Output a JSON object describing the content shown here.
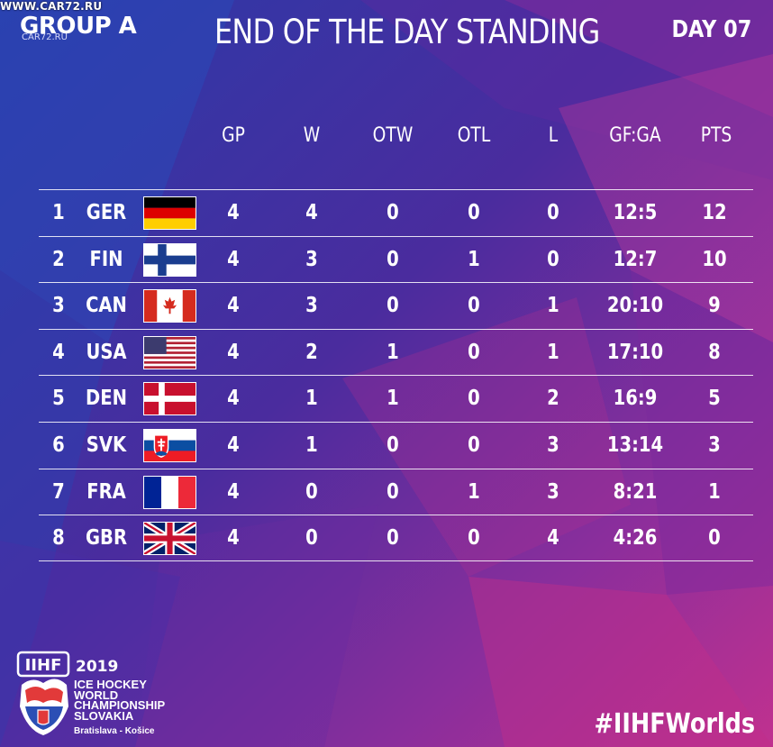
{
  "watermark": "WWW.CAR72.RU",
  "watermark2": "CAR72.RU",
  "group_label": "GROUP A",
  "title": "END OF THE DAY STANDING",
  "day_label": "DAY 07",
  "columns": [
    "GP",
    "W",
    "OTW",
    "OTL",
    "L",
    "GF:GA",
    "PTS"
  ],
  "rows": [
    {
      "rank": "1",
      "team": "GER",
      "flag": "germany-flag",
      "gp": "4",
      "w": "4",
      "otw": "0",
      "otl": "0",
      "l": "0",
      "gfga": "12:5",
      "pts": "12"
    },
    {
      "rank": "2",
      "team": "FIN",
      "flag": "finland-flag",
      "gp": "4",
      "w": "3",
      "otw": "0",
      "otl": "1",
      "l": "0",
      "gfga": "12:7",
      "pts": "10"
    },
    {
      "rank": "3",
      "team": "CAN",
      "flag": "canada-flag",
      "gp": "4",
      "w": "3",
      "otw": "0",
      "otl": "0",
      "l": "1",
      "gfga": "20:10",
      "pts": "9"
    },
    {
      "rank": "4",
      "team": "USA",
      "flag": "usa-flag",
      "gp": "4",
      "w": "2",
      "otw": "1",
      "otl": "0",
      "l": "1",
      "gfga": "17:10",
      "pts": "8"
    },
    {
      "rank": "5",
      "team": "DEN",
      "flag": "denmark-flag",
      "gp": "4",
      "w": "1",
      "otw": "1",
      "otl": "0",
      "l": "2",
      "gfga": "16:9",
      "pts": "5"
    },
    {
      "rank": "6",
      "team": "SVK",
      "flag": "slovakia-flag",
      "gp": "4",
      "w": "1",
      "otw": "0",
      "otl": "0",
      "l": "3",
      "gfga": "13:14",
      "pts": "3"
    },
    {
      "rank": "7",
      "team": "FRA",
      "flag": "france-flag",
      "gp": "4",
      "w": "0",
      "otw": "0",
      "otl": "1",
      "l": "3",
      "gfga": "8:21",
      "pts": "1"
    },
    {
      "rank": "8",
      "team": "GBR",
      "flag": "uk-flag",
      "gp": "4",
      "w": "0",
      "otw": "0",
      "otl": "0",
      "l": "4",
      "gfga": "4:26",
      "pts": "0"
    }
  ],
  "footer": {
    "logo_text": "IIHF",
    "year": "2019",
    "championship_lines": [
      "ICE HOCKEY",
      "WORLD",
      "CHAMPIONSHIP",
      "SLOVAKIA"
    ],
    "cities": "Bratislava - Košice",
    "hashtag": "#IIHFWorlds"
  },
  "colors": {
    "background_dark": "#2e2f9a",
    "background_magenta": "#b2308f",
    "text": "#ffffff"
  }
}
